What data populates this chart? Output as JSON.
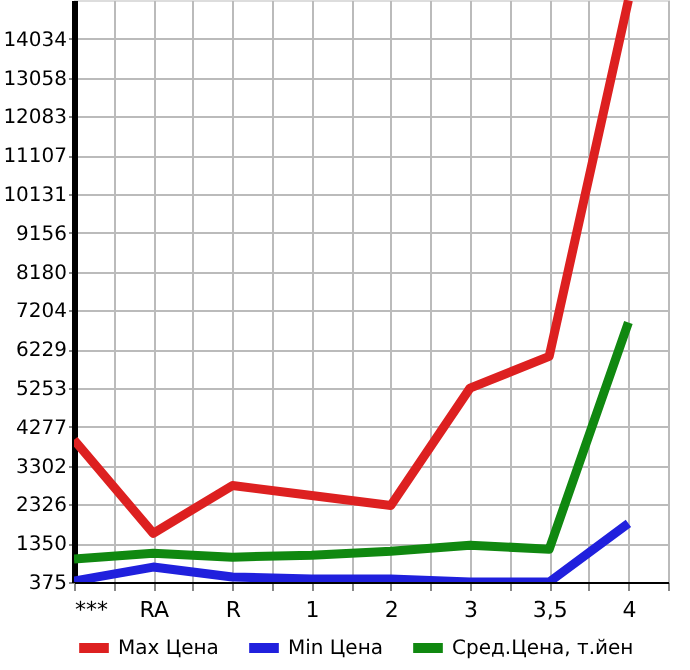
{
  "chart_data": {
    "type": "line",
    "categories": [
      "***",
      "RA",
      "R",
      "1",
      "2",
      "3",
      "3,5",
      "4"
    ],
    "series": [
      {
        "name": "Max Цена",
        "color": "#dd2020",
        "values": [
          3950,
          1600,
          2800,
          2550,
          2300,
          5250,
          6050,
          15000
        ]
      },
      {
        "name": "Min Цена",
        "color": "#2020dd",
        "values": [
          400,
          750,
          500,
          450,
          450,
          375,
          375,
          1850
        ]
      },
      {
        "name": "Сред.Цена, т.йен",
        "color": "#108810",
        "values": [
          950,
          1100,
          1000,
          1050,
          1150,
          1300,
          1200,
          6900
        ]
      }
    ],
    "ylim": [
      375,
      15009
    ],
    "yticks": [
      375,
      1350,
      2326,
      3302,
      4277,
      5253,
      6229,
      7204,
      8180,
      9156,
      10131,
      11107,
      12083,
      13058,
      14034
    ],
    "grid": true,
    "legend": "bottom",
    "marker": "none",
    "line_style": "solid"
  }
}
